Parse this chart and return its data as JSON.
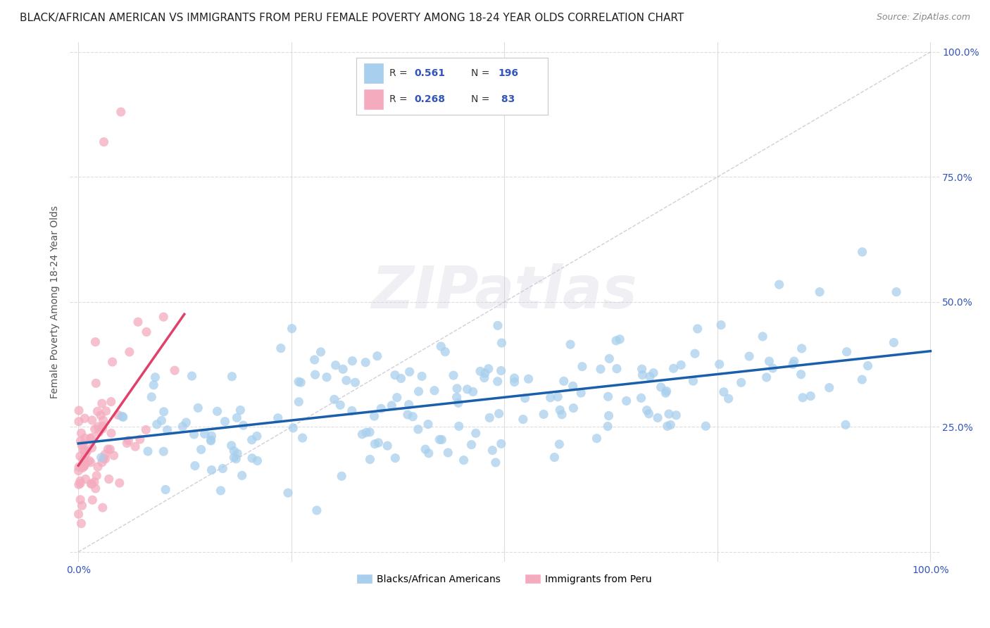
{
  "title": "BLACK/AFRICAN AMERICAN VS IMMIGRANTS FROM PERU FEMALE POVERTY AMONG 18-24 YEAR OLDS CORRELATION CHART",
  "source": "Source: ZipAtlas.com",
  "ylabel": "Female Poverty Among 18-24 Year Olds",
  "xlim": [
    0,
    1
  ],
  "ylim": [
    0,
    1
  ],
  "blue_R": 0.561,
  "blue_N": 196,
  "pink_R": 0.268,
  "pink_N": 83,
  "blue_color": "#A8CFED",
  "pink_color": "#F4ABBE",
  "blue_line_color": "#1A5FAB",
  "pink_line_color": "#E0406A",
  "blue_label": "Blacks/African Americans",
  "pink_label": "Immigrants from Peru",
  "background_color": "#FFFFFF",
  "grid_color": "#DDDDDD",
  "title_fontsize": 11,
  "axis_label_fontsize": 10,
  "tick_fontsize": 10,
  "legend_R_color": "#3355BB",
  "legend_N_color": "#3355BB"
}
